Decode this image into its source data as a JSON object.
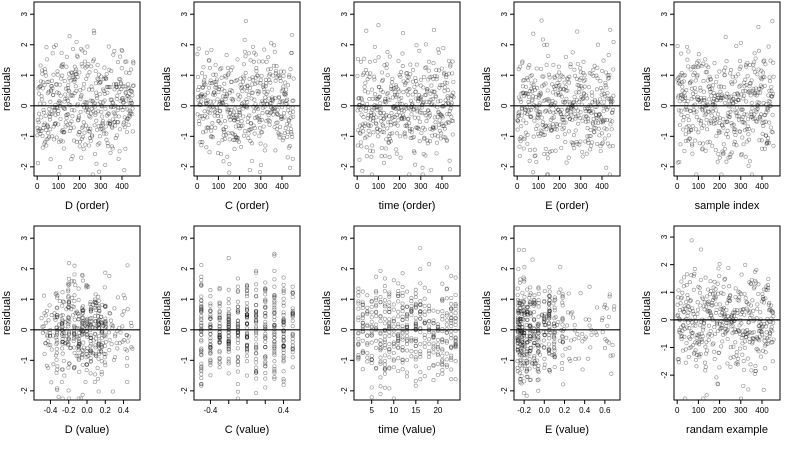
{
  "figure": {
    "background": "#ffffff",
    "point_color": "#000000",
    "point_opacity": 0.38,
    "point_shape": "open-circle"
  },
  "chart_data": [
    {
      "type": "scatter",
      "id": "d-order",
      "xlabel": "D (order)",
      "ylabel": "residuals",
      "xlim": [
        -15,
        485
      ],
      "ylim": [
        -2.3,
        3.4
      ],
      "xticks": [
        0,
        100,
        200,
        300,
        400
      ],
      "xtick_labels": [
        "0",
        "100",
        "200",
        "300",
        "400"
      ],
      "yticks": [
        -2,
        -1,
        0,
        1,
        2,
        3
      ],
      "ytick_labels": [
        "-2",
        "-1",
        "0",
        "1",
        "2",
        "3"
      ],
      "zero_line": true,
      "n_points": 455,
      "gen": {
        "kind": "order",
        "seed": 11,
        "sd": 0.85,
        "n": 455
      },
      "x": [],
      "y": []
    },
    {
      "type": "scatter",
      "id": "c-order",
      "xlabel": "C (order)",
      "ylabel": "residuals",
      "xlim": [
        -15,
        485
      ],
      "ylim": [
        -2.3,
        3.4
      ],
      "xticks": [
        0,
        100,
        200,
        300,
        400
      ],
      "xtick_labels": [
        "0",
        "100",
        "200",
        "300",
        "400"
      ],
      "yticks": [
        -2,
        -1,
        0,
        1,
        2,
        3
      ],
      "ytick_labels": [
        "-2",
        "-1",
        "0",
        "1",
        "2",
        "3"
      ],
      "zero_line": true,
      "n_points": 455,
      "gen": {
        "kind": "order",
        "seed": 23,
        "sd": 0.85,
        "n": 455
      },
      "x": [],
      "y": []
    },
    {
      "type": "scatter",
      "id": "time-order",
      "xlabel": "time (order)",
      "ylabel": "residuals",
      "xlim": [
        -15,
        485
      ],
      "ylim": [
        -2.3,
        3.4
      ],
      "xticks": [
        0,
        100,
        200,
        300,
        400
      ],
      "xtick_labels": [
        "0",
        "100",
        "200",
        "300",
        "400"
      ],
      "yticks": [
        -2,
        -1,
        0,
        1,
        2,
        3
      ],
      "ytick_labels": [
        "-2",
        "-1",
        "0",
        "1",
        "2",
        "3"
      ],
      "zero_line": true,
      "n_points": 455,
      "gen": {
        "kind": "order",
        "seed": 37,
        "sd": 0.85,
        "n": 455
      },
      "x": [],
      "y": []
    },
    {
      "type": "scatter",
      "id": "e-order",
      "xlabel": "E (order)",
      "ylabel": "residuals",
      "xlim": [
        -15,
        485
      ],
      "ylim": [
        -2.3,
        3.4
      ],
      "xticks": [
        0,
        100,
        200,
        300,
        400
      ],
      "xtick_labels": [
        "0",
        "100",
        "200",
        "300",
        "400"
      ],
      "yticks": [
        -2,
        -1,
        0,
        1,
        2,
        3
      ],
      "ytick_labels": [
        "-2",
        "-1",
        "0",
        "1",
        "2",
        "3"
      ],
      "zero_line": true,
      "n_points": 455,
      "gen": {
        "kind": "order",
        "seed": 41,
        "sd": 0.85,
        "n": 455
      },
      "x": [],
      "y": []
    },
    {
      "type": "scatter",
      "id": "sample-index",
      "xlabel": "sample index",
      "ylabel": "residuals",
      "xlim": [
        -15,
        485
      ],
      "ylim": [
        -2.3,
        3.4
      ],
      "xticks": [
        0,
        100,
        200,
        300,
        400
      ],
      "xtick_labels": [
        "0",
        "100",
        "200",
        "300",
        "400"
      ],
      "yticks": [
        -2,
        -1,
        0,
        1,
        2,
        3
      ],
      "ytick_labels": [
        "-2",
        "-1",
        "0",
        "1",
        "2",
        "3"
      ],
      "zero_line": true,
      "n_points": 455,
      "gen": {
        "kind": "order",
        "seed": 53,
        "sd": 0.85,
        "n": 455
      },
      "x": [],
      "y": []
    },
    {
      "type": "scatter",
      "id": "d-value",
      "xlabel": "D (value)",
      "ylabel": "residuals",
      "xlim": [
        -0.58,
        0.58
      ],
      "ylim": [
        -2.3,
        3.4
      ],
      "xticks": [
        -0.4,
        -0.2,
        0.0,
        0.2,
        0.4
      ],
      "xtick_labels": [
        "-0.4",
        "-0.2",
        "0.0",
        "0.2",
        "0.4"
      ],
      "yticks": [
        -2,
        -1,
        0,
        1,
        2,
        3
      ],
      "ytick_labels": [
        "-2",
        "-1",
        "0",
        "1",
        "2",
        "3"
      ],
      "zero_line": true,
      "n_points": 455,
      "gen": {
        "kind": "spread",
        "seed": 61,
        "sd": 0.85,
        "n": 455,
        "xmin": -0.5,
        "xmax": 0.5,
        "clusters": [
          -0.33,
          -0.27,
          -0.2,
          -0.14,
          -0.09,
          -0.05,
          0.0,
          0.04,
          0.09,
          0.13,
          0.16,
          0.2
        ],
        "cluster_frac": 0.6
      },
      "x": [],
      "y": []
    },
    {
      "type": "scatter",
      "id": "c-value",
      "xlabel": "C (value)",
      "ylabel": "residuals",
      "xlim": [
        -0.58,
        0.58
      ],
      "ylim": [
        -2.3,
        3.4
      ],
      "xticks": [
        -0.4,
        -0.2,
        0.0,
        0.2,
        0.4
      ],
      "xtick_labels": [
        "-0.4",
        "",
        "",
        "",
        "0.4"
      ],
      "yticks": [
        -2,
        -1,
        0,
        1,
        2,
        3
      ],
      "ytick_labels": [
        "-2",
        "-1",
        "0",
        "1",
        "2",
        "3"
      ],
      "zero_line": true,
      "n_points": 455,
      "gen": {
        "kind": "columns",
        "seed": 71,
        "sd": 0.85,
        "n": 455,
        "columns": [
          -0.5,
          -0.4,
          -0.3,
          -0.2,
          -0.1,
          0.0,
          0.1,
          0.2,
          0.3,
          0.4,
          0.5
        ]
      },
      "x": [],
      "y": []
    },
    {
      "type": "scatter",
      "id": "time-value",
      "xlabel": "time (value)",
      "ylabel": "residuals",
      "xlim": [
        1,
        25
      ],
      "ylim": [
        -2.3,
        3.4
      ],
      "xticks": [
        5,
        10,
        15,
        20
      ],
      "xtick_labels": [
        "5",
        "10",
        "15",
        "20"
      ],
      "yticks": [
        -2,
        -1,
        0,
        1,
        2,
        3
      ],
      "ytick_labels": [
        "-2",
        "-1",
        "0",
        "1",
        "2",
        "3"
      ],
      "zero_line": true,
      "n_points": 455,
      "gen": {
        "kind": "columns",
        "seed": 83,
        "sd": 0.85,
        "n": 455,
        "columns": [
          2,
          3,
          4,
          5,
          6,
          7,
          8,
          9,
          10,
          11,
          12,
          13,
          14,
          15,
          16,
          17,
          18,
          19,
          20,
          21,
          22,
          23,
          24
        ]
      },
      "x": [],
      "y": []
    },
    {
      "type": "scatter",
      "id": "e-value",
      "xlabel": "E (value)",
      "ylabel": "residuals",
      "xlim": [
        -0.3,
        0.75
      ],
      "ylim": [
        -2.3,
        3.4
      ],
      "xticks": [
        -0.2,
        0.0,
        0.2,
        0.4,
        0.6
      ],
      "xtick_labels": [
        "-0.2",
        "0.0",
        "0.2",
        "0.4",
        "0.6"
      ],
      "yticks": [
        -2,
        -1,
        0,
        1,
        2,
        3
      ],
      "ytick_labels": [
        "-2",
        "-1",
        "0",
        "1",
        "2",
        "3"
      ],
      "zero_line": true,
      "n_points": 455,
      "gen": {
        "kind": "spread",
        "seed": 97,
        "sd": 0.85,
        "n": 455,
        "xmin": -0.27,
        "xmax": 0.7,
        "clusters": [
          -0.26,
          -0.24,
          -0.22,
          -0.2,
          -0.17,
          -0.14,
          -0.1,
          -0.06,
          0.0,
          0.05,
          0.1,
          0.18
        ],
        "cluster_frac": 0.75
      },
      "x": [],
      "y": []
    },
    {
      "type": "scatter",
      "id": "random-example",
      "xlabel": "randam example",
      "ylabel": "residuals",
      "xlim": [
        -15,
        485
      ],
      "ylim": [
        -2.9,
        3.4
      ],
      "xticks": [
        0,
        100,
        200,
        300,
        400
      ],
      "xtick_labels": [
        "0",
        "100",
        "200",
        "300",
        "400"
      ],
      "yticks": [
        -2,
        -1,
        0,
        1,
        2,
        3
      ],
      "ytick_labels": [
        "-2",
        "-1",
        "0",
        "1",
        "2",
        "3"
      ],
      "zero_line": true,
      "n_points": 455,
      "gen": {
        "kind": "order",
        "seed": 109,
        "sd": 0.95,
        "n": 455
      },
      "x": [],
      "y": []
    }
  ]
}
